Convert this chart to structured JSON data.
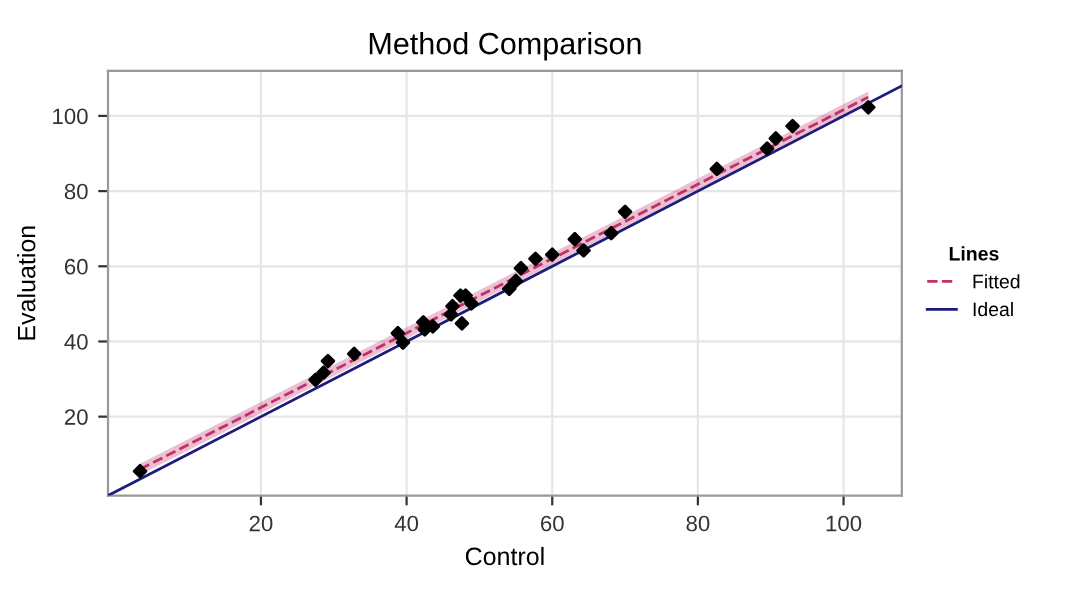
{
  "chart_data": {
    "type": "scatter",
    "title": "Method Comparison",
    "xlabel": "Control",
    "ylabel": "Evaluation",
    "legend_title": "Lines",
    "legend": "right",
    "grid": true,
    "xlim": [
      -1,
      108
    ],
    "ylim": [
      -1,
      112
    ],
    "xticks": [
      20,
      40,
      60,
      80,
      100
    ],
    "yticks": [
      20,
      40,
      60,
      80,
      100
    ],
    "series": [
      {
        "color": "#000000",
        "marker": "diamond",
        "x": [
          3.4,
          27.5,
          28.6,
          29.2,
          32.8,
          38.8,
          39.5,
          42.3,
          42.5,
          43.6,
          46.1,
          46.3,
          47.4,
          48.1,
          47.6,
          48.9,
          54.1,
          55.0,
          55.7,
          57.7,
          60.0,
          63.1,
          64.3,
          68.1,
          70.0,
          82.6,
          89.5,
          90.7,
          93.0,
          103.4
        ],
        "values": [
          5.5,
          29.8,
          31.7,
          34.8,
          36.7,
          42.2,
          39.7,
          45.1,
          43.2,
          44.0,
          47.2,
          49.4,
          52.2,
          52.2,
          44.8,
          50.1,
          54.0,
          56.1,
          59.5,
          62.0,
          63.1,
          67.2,
          64.2,
          68.8,
          74.5,
          85.9,
          91.3,
          94.0,
          97.3,
          102.3
        ]
      },
      {
        "type": "line",
        "name": "Fitted",
        "color": "#c0306a",
        "line_style": "dashed",
        "x": [
          3.4,
          103.4
        ],
        "values": [
          6.0,
          105.0
        ],
        "lower": [
          4.5,
          103.5
        ],
        "upper": [
          7.5,
          106.5
        ]
      },
      {
        "type": "line",
        "name": "Ideal",
        "color": "#1c1c7c",
        "line_style": "solid",
        "x": [
          -1,
          108
        ],
        "values": [
          -1,
          108
        ]
      }
    ]
  }
}
